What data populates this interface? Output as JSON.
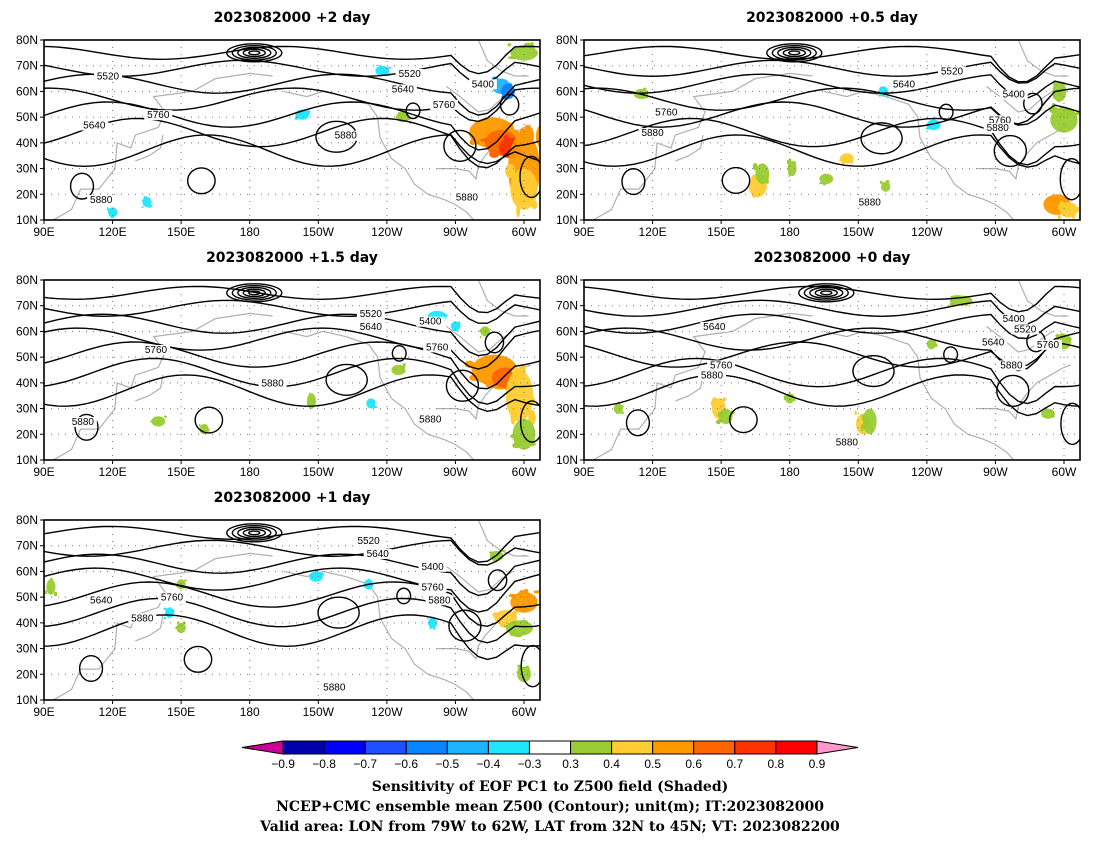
{
  "panels": [
    {
      "title": "2023082000  +2  day",
      "labels": [
        {
          "lon": 118,
          "lat": 65,
          "text": "5520"
        },
        {
          "lon": 112,
          "lat": 46,
          "text": "5640"
        },
        {
          "lon": 140,
          "lat": 50,
          "text": "5760"
        },
        {
          "lon": 250,
          "lat": 66,
          "text": "5520"
        },
        {
          "lon": 247,
          "lat": 60,
          "text": "5640"
        },
        {
          "lon": 265,
          "lat": 54,
          "text": "5760"
        },
        {
          "lon": 282,
          "lat": 62,
          "text": "5400"
        },
        {
          "lon": 222,
          "lat": 42,
          "text": "5880"
        },
        {
          "lon": 275,
          "lat": 18,
          "text": "5880"
        },
        {
          "lon": 115,
          "lat": 17,
          "text": "5880"
        }
      ]
    },
    {
      "title": "2023082000  +0.5  day",
      "labels": [
        {
          "lon": 251,
          "lat": 67,
          "text": "5520"
        },
        {
          "lon": 230,
          "lat": 62,
          "text": "5640"
        },
        {
          "lon": 278,
          "lat": 58,
          "text": "5400"
        },
        {
          "lon": 126,
          "lat": 51,
          "text": "5760"
        },
        {
          "lon": 120,
          "lat": 43,
          "text": "5880"
        },
        {
          "lon": 272,
          "lat": 48,
          "text": "5760"
        },
        {
          "lon": 271,
          "lat": 45,
          "text": "5880"
        },
        {
          "lon": 215,
          "lat": 16,
          "text": "5880"
        }
      ]
    },
    {
      "title": "2023082000  +1.5  day",
      "labels": [
        {
          "lon": 233,
          "lat": 66,
          "text": "5520"
        },
        {
          "lon": 233,
          "lat": 61,
          "text": "5640"
        },
        {
          "lon": 259,
          "lat": 63,
          "text": "5400"
        },
        {
          "lon": 139,
          "lat": 52,
          "text": "5760"
        },
        {
          "lon": 262,
          "lat": 53,
          "text": "5760"
        },
        {
          "lon": 190,
          "lat": 39,
          "text": "5880"
        },
        {
          "lon": 259,
          "lat": 25,
          "text": "5880"
        },
        {
          "lon": 107,
          "lat": 24,
          "text": "5880"
        }
      ]
    },
    {
      "title": "2023082000  +0  day",
      "labels": [
        {
          "lon": 147,
          "lat": 61,
          "text": "5640"
        },
        {
          "lon": 150,
          "lat": 46,
          "text": "5760"
        },
        {
          "lon": 146,
          "lat": 42,
          "text": "5880"
        },
        {
          "lon": 278,
          "lat": 64,
          "text": "5400"
        },
        {
          "lon": 283,
          "lat": 60,
          "text": "5520"
        },
        {
          "lon": 269,
          "lat": 55,
          "text": "5640"
        },
        {
          "lon": 293,
          "lat": 54,
          "text": "5760"
        },
        {
          "lon": 277,
          "lat": 46,
          "text": "5880"
        },
        {
          "lon": 205,
          "lat": 16,
          "text": "5880"
        }
      ]
    },
    {
      "title": "2023082000  +1  day",
      "labels": [
        {
          "lon": 232,
          "lat": 71,
          "text": "5520"
        },
        {
          "lon": 236,
          "lat": 66,
          "text": "5640"
        },
        {
          "lon": 260,
          "lat": 61,
          "text": "5400"
        },
        {
          "lon": 115,
          "lat": 48,
          "text": "5640"
        },
        {
          "lon": 146,
          "lat": 49,
          "text": "5760"
        },
        {
          "lon": 260,
          "lat": 53,
          "text": "5760"
        },
        {
          "lon": 263,
          "lat": 48,
          "text": "5880"
        },
        {
          "lon": 133,
          "lat": 41,
          "text": "5880"
        },
        {
          "lon": 217,
          "lat": 14,
          "text": "5880"
        }
      ]
    }
  ],
  "axes": {
    "lon_ticks": [
      "90E",
      "120E",
      "150E",
      "180",
      "150W",
      "120W",
      "90W",
      "60W"
    ],
    "lat_ticks": [
      "10N",
      "20N",
      "30N",
      "40N",
      "50N",
      "60N",
      "70N",
      "80N"
    ],
    "lon_range": [
      90,
      307
    ],
    "lat_range": [
      10,
      80
    ]
  },
  "colorbar": {
    "ticks": [
      "-0.9",
      "-0.8",
      "-0.7",
      "-0.6",
      "-0.5",
      "-0.4",
      "-0.3",
      "0.3",
      "0.4",
      "0.5",
      "0.6",
      "0.7",
      "0.8",
      "0.9"
    ],
    "colors": [
      "#cc0099",
      "#0000aa",
      "#0000ff",
      "#1f4fff",
      "#0a84ff",
      "#1cb4ff",
      "#1ee6ff",
      "#ffffff",
      "#99cc33",
      "#ffcc33",
      "#ff9900",
      "#ff6600",
      "#ff3300",
      "#ff0000",
      "#ff99cc"
    ]
  },
  "caption": {
    "line1": "Sensitivity of EOF PC1 to Z500 field (Shaded)",
    "line2": "NCEP+CMC ensemble mean Z500 (Contour); unit(m); IT:2023082000",
    "line3": "Valid area: LON from 79W to 62W, LAT from 32N to 45N; VT: 2023082200"
  }
}
